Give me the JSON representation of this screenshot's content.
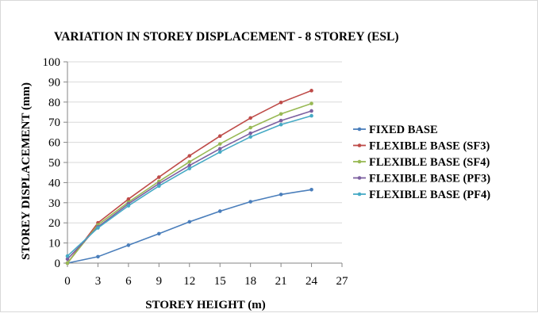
{
  "chart_data": {
    "type": "line",
    "title": "VARIATION IN STOREY DISPLACEMENT - 8 STOREY (ESL)",
    "xlabel": "STOREY HEIGHT (m)",
    "ylabel": "STOREY DISPLACEMENT (mm)",
    "xlim": [
      0,
      27
    ],
    "ylim": [
      0,
      100
    ],
    "xticks": [
      0,
      3,
      6,
      9,
      12,
      15,
      18,
      21,
      24,
      27
    ],
    "yticks": [
      0,
      10,
      20,
      30,
      40,
      50,
      60,
      70,
      80,
      90,
      100
    ],
    "grid": true,
    "legend_position": "right",
    "x": [
      0,
      3,
      6,
      9,
      12,
      15,
      18,
      21,
      24
    ],
    "series": [
      {
        "name": "FIXED BASE",
        "color": "#4a7ebb",
        "values": [
          0,
          3.2,
          8.9,
          14.6,
          20.5,
          25.8,
          30.5,
          34.1,
          36.5
        ]
      },
      {
        "name": "FLEXIBLE BASE (SF3)",
        "color": "#be4b48",
        "values": [
          0,
          20.0,
          31.8,
          42.7,
          53.3,
          63.1,
          72.1,
          79.8,
          85.7
        ]
      },
      {
        "name": "FLEXIBLE BASE (SF4)",
        "color": "#98b954",
        "values": [
          0,
          19.0,
          30.3,
          40.6,
          50.3,
          59.2,
          67.3,
          74.1,
          79.3
        ]
      },
      {
        "name": "FLEXIBLE BASE (PF3)",
        "color": "#7d60a0",
        "values": [
          2.0,
          18.0,
          29.5,
          39.5,
          48.5,
          56.8,
          64.5,
          70.8,
          75.6
        ]
      },
      {
        "name": "FLEXIBLE BASE (PF4)",
        "color": "#46aac5",
        "values": [
          3.5,
          17.5,
          28.5,
          38.3,
          47.0,
          55.2,
          62.7,
          68.8,
          73.2
        ]
      }
    ]
  }
}
